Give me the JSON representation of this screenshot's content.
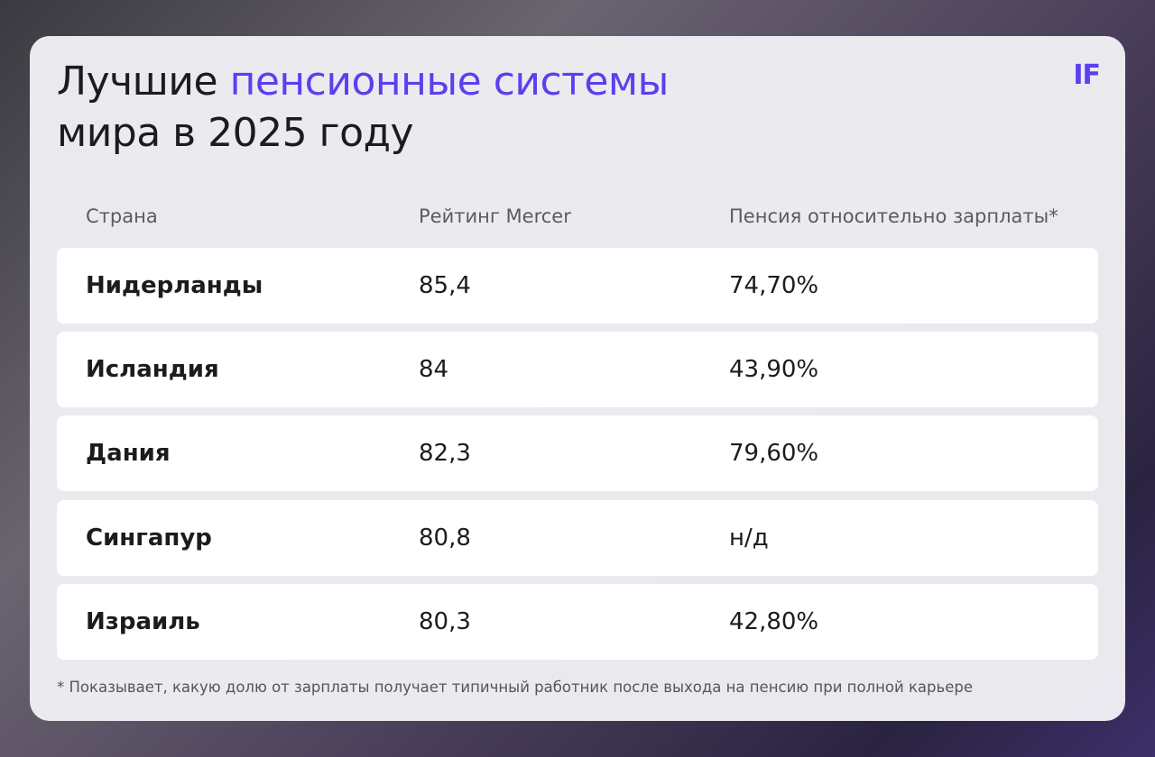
{
  "header": {
    "title_start": "Лучшие",
    "title_accent": "пенсионные системы",
    "title_end": "мира в 2025 году",
    "logo": "IF"
  },
  "table": {
    "columns": [
      "Страна",
      "Рейтинг Mercer",
      "Пенсия относительно зарплаты*"
    ],
    "rows": [
      [
        "Нидерланды",
        "85,4",
        "74,70%"
      ],
      [
        "Исландия",
        "84",
        "43,90%"
      ],
      [
        "Дания",
        "82,3",
        "79,60%"
      ],
      [
        "Сингапур",
        "80,8",
        "н/д"
      ],
      [
        "Израиль",
        "80,3",
        "42,80%"
      ]
    ]
  },
  "footnote": "* Показывает, какую долю от зарплаты получает типичный работник после выхода на пенсию при полной карьере"
}
